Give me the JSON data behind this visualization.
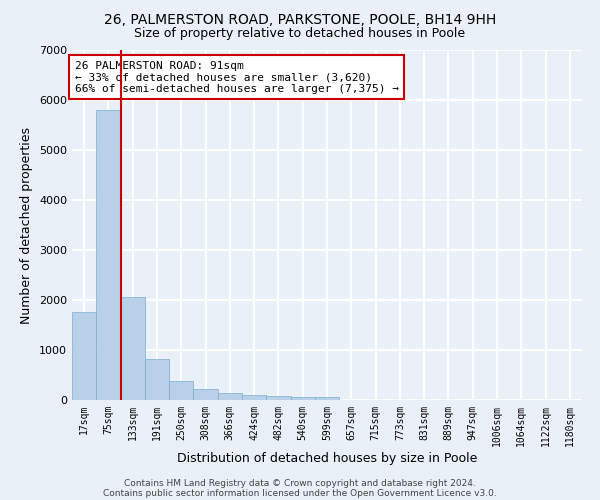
{
  "title_line1": "26, PALMERSTON ROAD, PARKSTONE, POOLE, BH14 9HH",
  "title_line2": "Size of property relative to detached houses in Poole",
  "xlabel": "Distribution of detached houses by size in Poole",
  "ylabel": "Number of detached properties",
  "bin_labels": [
    "17sqm",
    "75sqm",
    "133sqm",
    "191sqm",
    "250sqm",
    "308sqm",
    "366sqm",
    "424sqm",
    "482sqm",
    "540sqm",
    "599sqm",
    "657sqm",
    "715sqm",
    "773sqm",
    "831sqm",
    "889sqm",
    "947sqm",
    "1006sqm",
    "1064sqm",
    "1122sqm",
    "1180sqm"
  ],
  "bar_values": [
    1760,
    5800,
    2060,
    820,
    375,
    225,
    150,
    105,
    75,
    60,
    60,
    0,
    0,
    0,
    0,
    0,
    0,
    0,
    0,
    0,
    0
  ],
  "bar_color": "#b8d0e8",
  "bar_edge_color": "#7aafd4",
  "property_line_color": "#cc0000",
  "annotation_line1": "26 PALMERSTON ROAD: 91sqm",
  "annotation_line2": "← 33% of detached houses are smaller (3,620)",
  "annotation_line3": "66% of semi-detached houses are larger (7,375) →",
  "annotation_box_color": "#ffffff",
  "annotation_box_edge": "#cc0000",
  "ylim": [
    0,
    7000
  ],
  "yticks": [
    0,
    1000,
    2000,
    3000,
    4000,
    5000,
    6000,
    7000
  ],
  "footer_line1": "Contains HM Land Registry data © Crown copyright and database right 2024.",
  "footer_line2": "Contains public sector information licensed under the Open Government Licence v3.0.",
  "background_color": "#eaf0f8",
  "plot_background": "#eaf0f8",
  "grid_color": "#ffffff",
  "title_fontsize": 10,
  "subtitle_fontsize": 9,
  "axis_label_fontsize": 9,
  "tick_fontsize": 7,
  "annotation_fontsize": 8,
  "footer_fontsize": 6.5
}
